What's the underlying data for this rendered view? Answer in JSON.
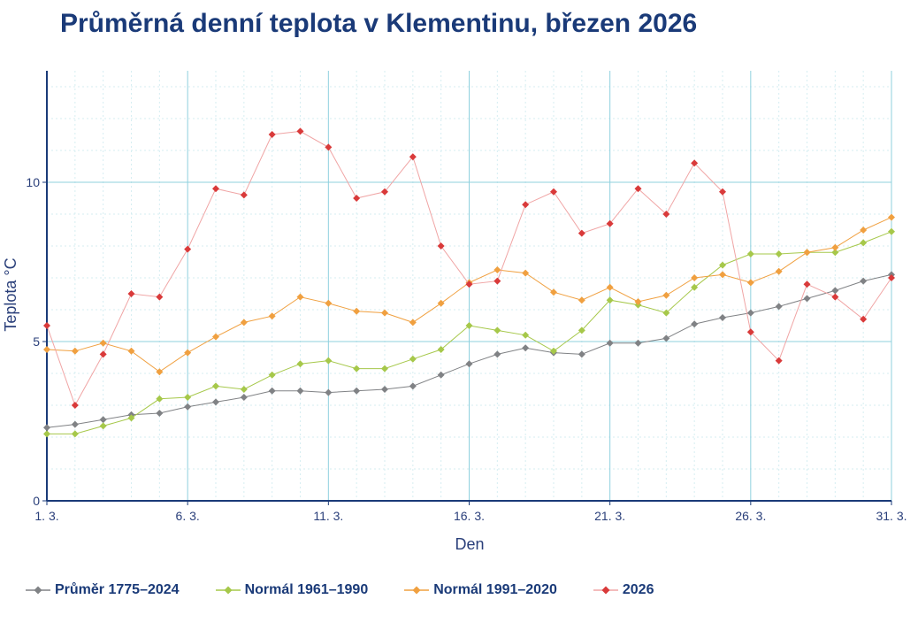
{
  "chart_data": {
    "type": "line",
    "title": "Průměrná denní teplota v Klementinu, březen 2026",
    "xlabel": "Den",
    "ylabel": "Teplota °C",
    "x": [
      1,
      2,
      3,
      4,
      5,
      6,
      7,
      8,
      9,
      10,
      11,
      12,
      13,
      14,
      15,
      16,
      17,
      18,
      19,
      20,
      21,
      22,
      23,
      24,
      25,
      26,
      27,
      28,
      29,
      30,
      31
    ],
    "xlim": [
      1,
      31
    ],
    "ylim": [
      0,
      13.5
    ],
    "xticks": [
      1,
      6,
      11,
      16,
      21,
      26,
      31
    ],
    "xtick_labels": [
      "1. 3.",
      "6. 3.",
      "11. 3.",
      "16. 3.",
      "21. 3.",
      "26. 3.",
      "31. 3."
    ],
    "yticks": [
      0,
      5,
      10
    ],
    "ytick_labels": [
      "0",
      "5",
      "10"
    ],
    "grid": true,
    "legend_position": "bottom",
    "series": [
      {
        "name": "Průměr 1775–2024",
        "color": "#808285",
        "marker": "diamond",
        "values": [
          2.3,
          2.4,
          2.55,
          2.7,
          2.75,
          2.95,
          3.1,
          3.25,
          3.45,
          3.45,
          3.4,
          3.45,
          3.5,
          3.6,
          3.95,
          4.3,
          4.6,
          4.8,
          4.65,
          4.6,
          4.95,
          4.95,
          5.1,
          5.55,
          5.75,
          5.9,
          6.1,
          6.35,
          6.6,
          6.9,
          7.1
        ]
      },
      {
        "name": "Normál 1961–1990",
        "color": "#a6c84a",
        "marker": "diamond",
        "values": [
          2.1,
          2.1,
          2.35,
          2.6,
          3.2,
          3.25,
          3.6,
          3.5,
          3.95,
          4.3,
          4.4,
          4.15,
          4.15,
          4.45,
          4.75,
          5.5,
          5.35,
          5.2,
          4.7,
          5.35,
          6.3,
          6.15,
          5.9,
          6.7,
          7.4,
          7.75,
          7.75,
          7.8,
          7.8,
          8.1,
          8.45
        ]
      },
      {
        "name": "Normál 1991–2020",
        "color": "#f0a040",
        "marker": "diamond",
        "values": [
          4.75,
          4.7,
          4.95,
          4.7,
          4.05,
          4.65,
          5.15,
          5.6,
          5.8,
          6.4,
          6.2,
          5.95,
          5.9,
          5.6,
          6.2,
          6.85,
          7.25,
          7.15,
          6.55,
          6.3,
          6.7,
          6.25,
          6.45,
          7.0,
          7.1,
          6.85,
          7.2,
          7.8,
          7.95,
          8.5,
          8.9
        ]
      },
      {
        "name": "2026",
        "color": "#d93a3a",
        "line_color": "#f0a5a5",
        "marker": "diamond",
        "values": [
          5.5,
          3.0,
          4.6,
          6.5,
          6.4,
          7.9,
          9.8,
          9.6,
          11.5,
          11.6,
          11.1,
          9.5,
          9.7,
          10.8,
          8.0,
          6.8,
          6.9,
          9.3,
          9.7,
          8.4,
          8.7,
          9.8,
          9.0,
          10.6,
          9.7,
          5.3,
          4.4,
          6.8,
          6.4,
          5.7,
          7.0
        ]
      }
    ]
  }
}
